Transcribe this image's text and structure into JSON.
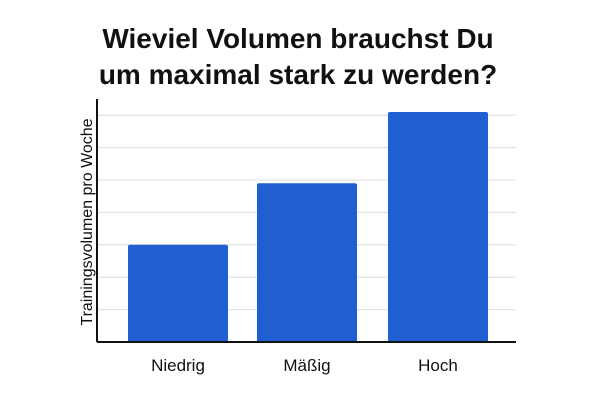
{
  "chart_data": {
    "type": "bar",
    "title_lines": [
      "Wieviel Volumen brauchst Du",
      "um maximal stark zu werden?"
    ],
    "xlabel": "",
    "ylabel": "Trainingsvolumen pro Woche",
    "categories": [
      "Niedrig",
      "Mäßig",
      "Hoch"
    ],
    "values": [
      30,
      49,
      71
    ],
    "ylim": [
      0,
      75
    ],
    "y_ticks": [
      0,
      10,
      20,
      30,
      40,
      50,
      60,
      70
    ],
    "y_tick_labels_visible": false,
    "grid": true,
    "bar_color": "#1f5fd1",
    "grid_color": "#dcdcdc",
    "axis_color": "#111111"
  }
}
